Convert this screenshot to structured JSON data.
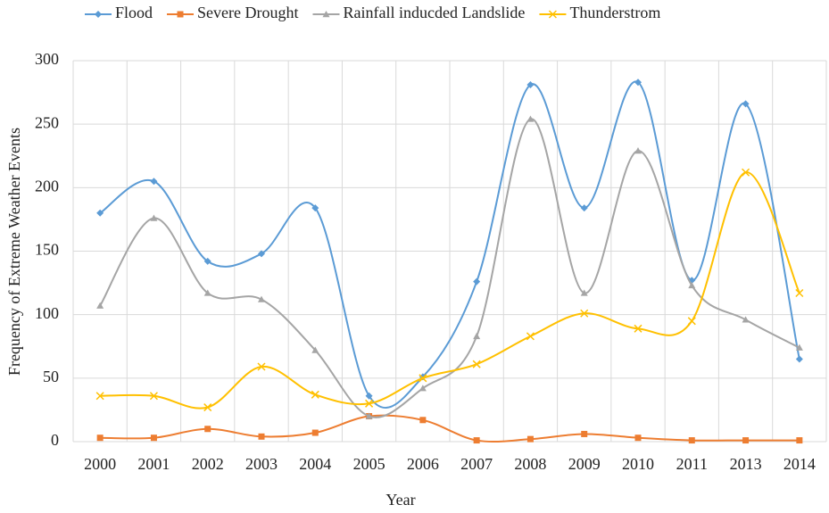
{
  "chart_data": {
    "type": "line",
    "xlabel": "Year",
    "ylabel": "Frequency of Extreme Weather Events",
    "categories": [
      "2000",
      "2001",
      "2002",
      "2003",
      "2004",
      "2005",
      "2006",
      "2007",
      "2008",
      "2009",
      "2010",
      "2011",
      "2013",
      "2014"
    ],
    "series": [
      {
        "name": "Flood",
        "color": "#5b9bd5",
        "marker": "diamond",
        "values": [
          180,
          205,
          142,
          148,
          184,
          36,
          51,
          126,
          281,
          184,
          283,
          127,
          266,
          65
        ]
      },
      {
        "name": "Severe Drought",
        "color": "#ed7d31",
        "marker": "square",
        "values": [
          3,
          3,
          10,
          4,
          7,
          20,
          17,
          1,
          2,
          6,
          3,
          1,
          1,
          1
        ]
      },
      {
        "name": "Rainfall inducded Landslide",
        "color": "#a5a5a5",
        "marker": "triangle",
        "values": [
          107,
          176,
          117,
          112,
          72,
          20,
          42,
          83,
          254,
          117,
          229,
          123,
          96,
          74
        ]
      },
      {
        "name": "Thunderstrom",
        "color": "#ffc000",
        "marker": "x",
        "values": [
          36,
          36,
          27,
          59,
          37,
          30,
          50,
          61,
          83,
          101,
          89,
          95,
          212,
          117
        ]
      }
    ],
    "ylim": [
      0,
      300
    ],
    "yticks": [
      0,
      50,
      100,
      150,
      200,
      250,
      300
    ],
    "grid": true,
    "legend": "top",
    "smooth": true
  }
}
